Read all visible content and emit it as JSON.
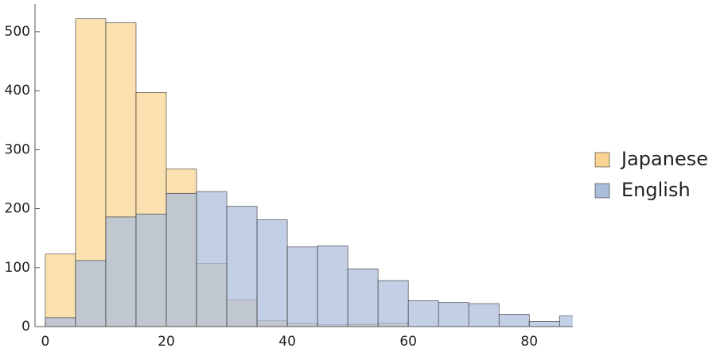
{
  "chart_data": {
    "type": "histogram",
    "bins": [
      0,
      5,
      10,
      15,
      20,
      25,
      30,
      35,
      40,
      45,
      50,
      55,
      60,
      65,
      70,
      75,
      80,
      85,
      90
    ],
    "series": [
      {
        "name": "Japanese",
        "color": "#fad592",
        "values": [
          123,
          522,
          515,
          397,
          267,
          107,
          45,
          10,
          6,
          3,
          4,
          6,
          0,
          0,
          0,
          0,
          0,
          0
        ]
      },
      {
        "name": "English",
        "color": "#aabddb",
        "values": [
          15,
          112,
          186,
          191,
          226,
          229,
          204,
          181,
          135,
          137,
          98,
          78,
          44,
          41,
          39,
          21,
          9,
          18
        ]
      }
    ],
    "xlim": [
      -1.7,
      87.2
    ],
    "ylim": [
      0,
      547
    ],
    "xticks": [
      0,
      20,
      40,
      60,
      80
    ],
    "yticks": [
      0,
      100,
      200,
      300,
      400,
      500
    ],
    "legend": "right"
  }
}
